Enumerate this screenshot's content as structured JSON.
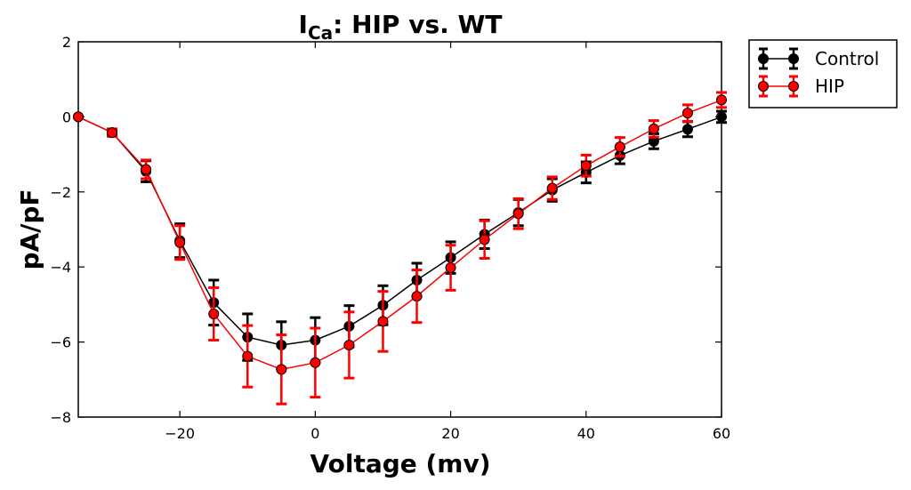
{
  "chart_data": {
    "type": "line",
    "title": {
      "main": "I",
      "subscript": "Ca",
      "rest": ": HIP vs. WT"
    },
    "xlabel": "Voltage (mv)",
    "ylabel": "pA/pF",
    "xlim": [
      -35,
      60
    ],
    "ylim": [
      -8,
      2
    ],
    "xticks": [
      -20,
      0,
      20,
      40,
      60
    ],
    "xtick_labels": [
      "−20",
      "0",
      "20",
      "40",
      "60"
    ],
    "yticks": [
      -8,
      -6,
      -4,
      -2,
      0,
      2
    ],
    "ytick_labels": [
      "−8",
      "−6",
      "−4",
      "−2",
      "0",
      "2"
    ],
    "x": [
      -35,
      -30,
      -25,
      -20,
      -15,
      -10,
      -5,
      0,
      5,
      10,
      15,
      20,
      25,
      30,
      35,
      40,
      45,
      50,
      55,
      60
    ],
    "series": [
      {
        "name": "Control",
        "color": "#000000",
        "values": [
          0,
          -0.42,
          -1.45,
          -3.3,
          -4.95,
          -5.87,
          -6.08,
          -5.95,
          -5.58,
          -5.02,
          -4.35,
          -3.75,
          -3.13,
          -2.55,
          -1.95,
          -1.48,
          -1.03,
          -0.65,
          -0.33,
          0.0
        ],
        "errors": [
          0,
          0.08,
          0.28,
          0.45,
          0.6,
          0.62,
          0.62,
          0.6,
          0.55,
          0.52,
          0.45,
          0.42,
          0.38,
          0.35,
          0.3,
          0.28,
          0.22,
          0.2,
          0.2,
          0.15
        ]
      },
      {
        "name": "HIP",
        "color": "#ff0000",
        "values": [
          0,
          -0.42,
          -1.4,
          -3.35,
          -5.25,
          -6.38,
          -6.73,
          -6.55,
          -6.08,
          -5.45,
          -4.78,
          -4.02,
          -3.27,
          -2.58,
          -1.9,
          -1.3,
          -0.8,
          -0.32,
          0.1,
          0.45
        ],
        "errors": [
          0,
          0.1,
          0.25,
          0.45,
          0.7,
          0.82,
          0.92,
          0.92,
          0.88,
          0.8,
          0.7,
          0.6,
          0.5,
          0.4,
          0.3,
          0.28,
          0.25,
          0.22,
          0.22,
          0.2
        ]
      }
    ],
    "legend": {
      "position": "outside-right-top",
      "entries": [
        "Control",
        "HIP"
      ]
    }
  }
}
